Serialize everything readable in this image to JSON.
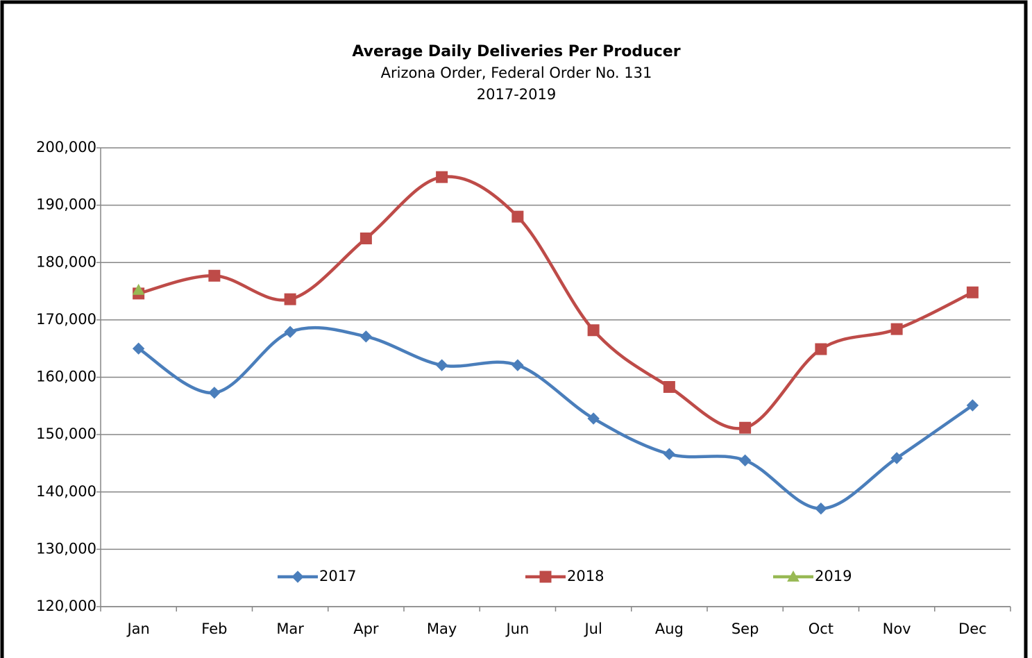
{
  "chart_data": {
    "type": "line",
    "title": "Average Daily Deliveries Per Producer",
    "subtitle": [
      "Arizona Order, Federal Order No. 131",
      "2017-2019"
    ],
    "categories": [
      "Jan",
      "Feb",
      "Mar",
      "Apr",
      "May",
      "Jun",
      "Jul",
      "Aug",
      "Sep",
      "Oct",
      "Nov",
      "Dec"
    ],
    "series": [
      {
        "name": "2017",
        "color": "#4a7ebb",
        "marker": "diamond",
        "values": [
          165000,
          157300,
          167900,
          167100,
          162100,
          162100,
          152800,
          146600,
          145500,
          137100,
          145900,
          155100
        ]
      },
      {
        "name": "2018",
        "color": "#be4b48",
        "marker": "square",
        "values": [
          174600,
          177700,
          173600,
          184200,
          194900,
          188000,
          168200,
          158300,
          151200,
          164900,
          168400,
          174800
        ]
      },
      {
        "name": "2019",
        "color": "#98b954",
        "marker": "triangle",
        "values": [
          175200,
          null,
          null,
          null,
          null,
          null,
          null,
          null,
          null,
          null,
          null,
          null
        ]
      }
    ],
    "ylim": [
      120000,
      200000
    ],
    "yticks": [
      {
        "value": 120000,
        "label": "120,000"
      },
      {
        "value": 130000,
        "label": "130,000"
      },
      {
        "value": 140000,
        "label": "140,000"
      },
      {
        "value": 150000,
        "label": "150,000"
      },
      {
        "value": 160000,
        "label": "160,000"
      },
      {
        "value": 170000,
        "label": "170,000"
      },
      {
        "value": 180000,
        "label": "180,000"
      },
      {
        "value": 190000,
        "label": "190,000"
      },
      {
        "value": 200000,
        "label": "200,000"
      }
    ],
    "grid": true,
    "smooth": true,
    "legend": "bottom"
  }
}
